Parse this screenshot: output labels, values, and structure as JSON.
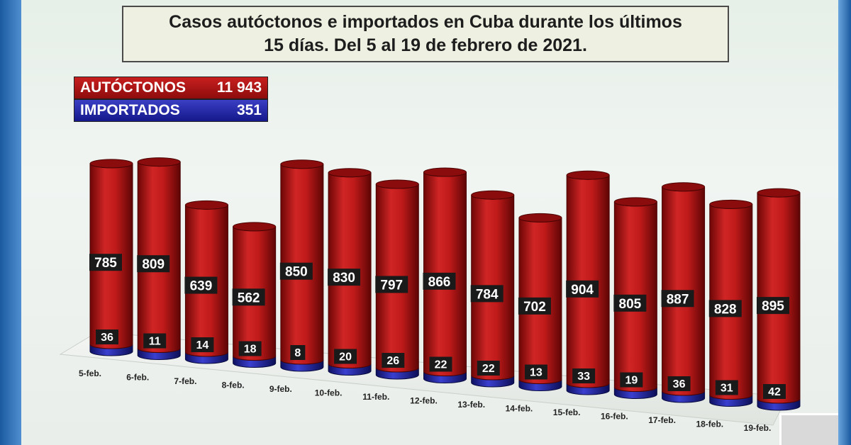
{
  "chart_data": {
    "type": "bar",
    "title": "Casos autóctonos e importados en Cuba durante los últimos 15 días. Del 5 al 19 de febrero de 2021.",
    "title_lines": [
      "Casos autóctonos e importados en Cuba durante los últimos",
      "15 días. Del 5 al 19 de febrero de 2021."
    ],
    "categories": [
      "5-feb.",
      "6-feb.",
      "7-feb.",
      "8-feb.",
      "9-feb.",
      "10-feb.",
      "11-feb.",
      "12-feb.",
      "13-feb.",
      "14-feb.",
      "15-feb.",
      "16-feb.",
      "17-feb.",
      "18-feb.",
      "19-feb."
    ],
    "series": [
      {
        "name": "AUTÓCTONOS",
        "color": "#b81616",
        "values": [
          785,
          809,
          639,
          562,
          850,
          830,
          797,
          866,
          784,
          702,
          904,
          805,
          887,
          828,
          895
        ]
      },
      {
        "name": "IMPORTADOS",
        "color": "#2226a8",
        "values": [
          36,
          11,
          14,
          18,
          8,
          20,
          26,
          22,
          22,
          13,
          33,
          19,
          36,
          31,
          42
        ]
      }
    ],
    "legend": {
      "placement": "top-left",
      "items": [
        {
          "label": "AUTÓCTONOS",
          "total": "11 943"
        },
        {
          "label": "IMPORTADOS",
          "total": "351"
        }
      ]
    },
    "ylim": [
      0,
      950
    ],
    "stacked": true,
    "style": "3d-cylinder"
  }
}
